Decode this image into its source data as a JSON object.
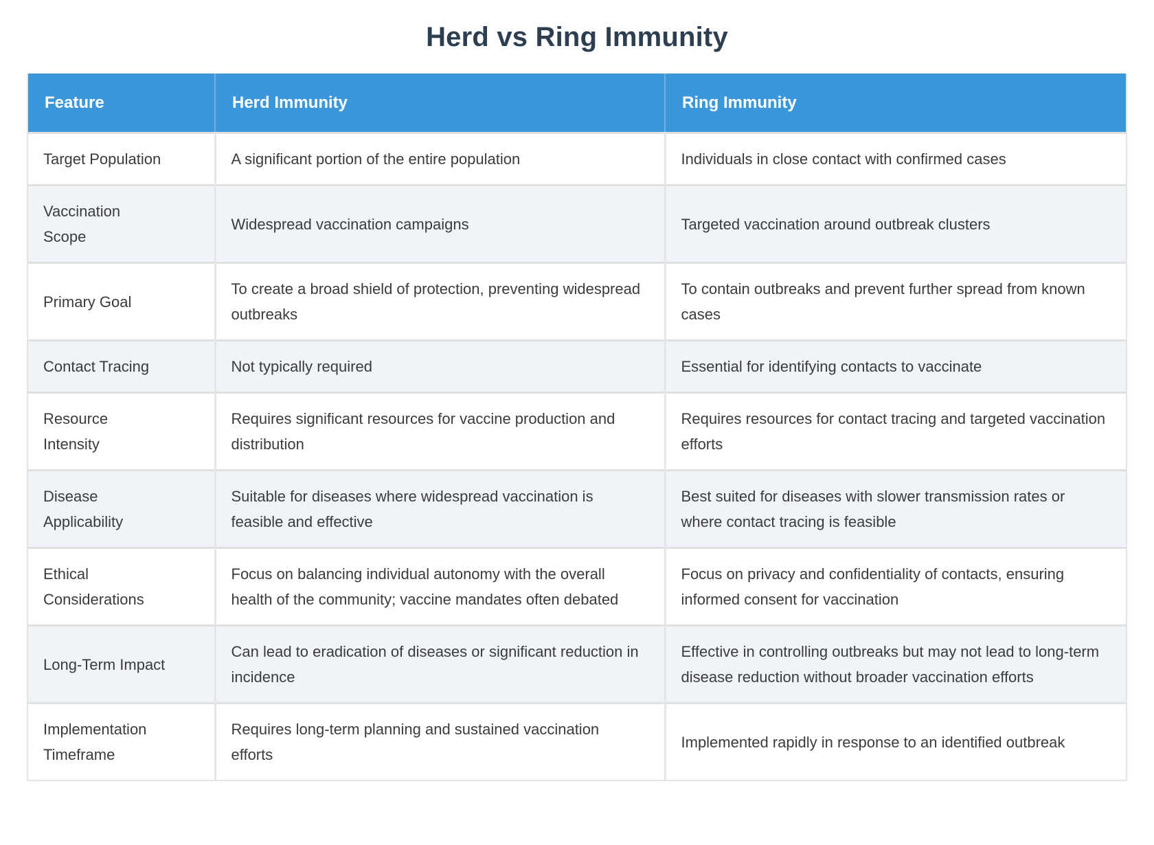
{
  "title": "Herd vs Ring Immunity",
  "table": {
    "columns": [
      "Feature",
      "Herd Immunity",
      "Ring Immunity"
    ],
    "rows": [
      {
        "feature": "Target Population",
        "herd": "A significant portion of the entire population",
        "ring": "Individuals in close contact with confirmed cases"
      },
      {
        "feature": "Vaccination Scope",
        "herd": "Widespread vaccination campaigns",
        "ring": "Targeted vaccination around outbreak clusters"
      },
      {
        "feature": "Primary Goal",
        "herd": "To create a broad shield of protection, preventing widespread outbreaks",
        "ring": "To contain outbreaks and prevent further spread from known cases"
      },
      {
        "feature": "Contact Tracing",
        "herd": "Not typically required",
        "ring": "Essential for identifying contacts to vaccinate"
      },
      {
        "feature": "Resource Intensity",
        "herd": "Requires significant resources for vaccine production and distribution",
        "ring": "Requires resources for contact tracing and targeted vaccination efforts"
      },
      {
        "feature": "Disease Applicability",
        "herd": "Suitable for diseases where widespread vaccination is feasible and effective",
        "ring": "Best suited for diseases with slower transmission rates or where contact tracing is feasible"
      },
      {
        "feature": "Ethical Considerations",
        "herd": "Focus on balancing individual autonomy with the overall health of the community; vaccine mandates often debated",
        "ring": "Focus on privacy and confidentiality of contacts, ensuring informed consent for vaccination"
      },
      {
        "feature": "Long-Term Impact",
        "herd": "Can lead to eradication of diseases or significant reduction in incidence",
        "ring": "Effective in controlling outbreaks but may not lead to long-term disease reduction without broader vaccination efforts"
      },
      {
        "feature": "Implementation Timeframe",
        "herd": "Requires long-term planning and sustained vaccination efforts",
        "ring": "Implemented rapidly in response to an identified outbreak"
      }
    ]
  },
  "colors": {
    "header_bg": "#3b97d9",
    "header_text": "#ffffff",
    "row_alt_bg": "#f0f3f8",
    "title_text": "#2c3e50",
    "body_text": "#3b3b3b",
    "divider": "#e0e0e0"
  }
}
